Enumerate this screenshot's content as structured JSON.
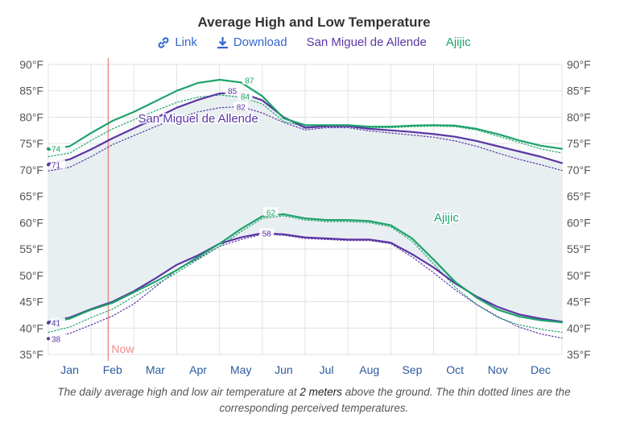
{
  "title": "Average High and Low Temperature",
  "controls": {
    "link_label": "Link",
    "download_label": "Download",
    "series1_label": "San Miguel de Allende",
    "series2_label": "Ajijic"
  },
  "caption": {
    "before": "The daily average high and low air temperature at ",
    "emph": "2 meters",
    "after": " above the ground. The thin dotted lines are the corresponding perceived temperatures."
  },
  "colors": {
    "san_miguel": "#5c35a5",
    "ajijic": "#1ea36b",
    "band": "#e9eef2",
    "now_line": "#f08a8a",
    "grid": "#e2e2e2"
  },
  "chart_data": {
    "type": "line",
    "title": "Average High and Low Temperature",
    "y_unit": "°F",
    "ylim": [
      35,
      90
    ],
    "y_ticks": [
      35,
      40,
      45,
      50,
      55,
      60,
      65,
      70,
      75,
      80,
      85,
      90
    ],
    "y_tick_labels": [
      "35°F",
      "40°F",
      "45°F",
      "50°F",
      "55°F",
      "60°F",
      "65°F",
      "70°F",
      "75°F",
      "80°F",
      "85°F",
      "90°F"
    ],
    "x_labels": [
      "Jan",
      "Feb",
      "Mar",
      "Apr",
      "May",
      "Jun",
      "Jul",
      "Aug",
      "Sep",
      "Oct",
      "Nov",
      "Dec"
    ],
    "x_unit": "month",
    "now_label": "Now",
    "now_x": 1.4,
    "grid": true,
    "series": [
      {
        "name": "San Miguel de Allende",
        "kind": "high",
        "style": "solid",
        "color": "#5c35a5",
        "x": [
          0,
          0.5,
          1,
          1.5,
          2,
          2.5,
          3,
          3.5,
          4,
          4.5,
          5,
          5.5,
          6,
          6.5,
          7,
          7.5,
          8,
          8.5,
          9,
          9.5,
          10,
          10.5,
          11,
          11.5,
          12
        ],
        "y": [
          71.2,
          72,
          73.9,
          76,
          77.9,
          79.8,
          81.8,
          83.3,
          84.5,
          84.6,
          83.2,
          80,
          78,
          78.3,
          78.3,
          77.8,
          77.5,
          77.2,
          76.8,
          76.3,
          75.5,
          74.5,
          73.5,
          72.5,
          71.3
        ],
        "labels": [
          {
            "x": 0,
            "y": 71,
            "text": "71"
          },
          {
            "x": 4.3,
            "y": 85,
            "text": "85"
          }
        ],
        "name_label_pos": [
          3.5,
          79
        ]
      },
      {
        "name": "San Miguel de Allende",
        "kind": "high perceived",
        "style": "dotted",
        "color": "#5c35a5",
        "x": [
          0,
          0.5,
          1,
          1.5,
          2,
          2.5,
          3,
          3.5,
          4,
          4.5,
          5,
          5.5,
          6,
          6.5,
          7,
          7.5,
          8,
          8.5,
          9,
          9.5,
          10,
          10.5,
          11,
          11.5,
          12
        ],
        "y": [
          69.8,
          70.5,
          72.5,
          74.8,
          76.5,
          78.2,
          79.8,
          81,
          81.8,
          82,
          80.8,
          79,
          77.6,
          78,
          78,
          77.4,
          77,
          76.6,
          76.2,
          75.5,
          74.5,
          73.2,
          72,
          71,
          69.9
        ],
        "labels": [
          {
            "x": 4.5,
            "y": 82,
            "text": "82"
          }
        ]
      },
      {
        "name": "San Miguel de Allende",
        "kind": "low",
        "style": "solid",
        "color": "#5c35a5",
        "x": [
          0,
          0.5,
          1,
          1.5,
          2,
          2.5,
          3,
          3.5,
          4,
          4.5,
          5,
          5.5,
          6,
          6.5,
          7,
          7.5,
          8,
          8.5,
          9,
          9.5,
          10,
          10.5,
          11,
          11.5,
          12
        ],
        "y": [
          41.2,
          42,
          43.6,
          45,
          47,
          49.4,
          52,
          53.8,
          56,
          57.2,
          58,
          57.8,
          57.2,
          57,
          56.8,
          56.8,
          56.2,
          54,
          51.5,
          48.5,
          46,
          44,
          42.6,
          41.8,
          41.2
        ],
        "labels": [
          {
            "x": 0,
            "y": 41,
            "text": "41"
          },
          {
            "x": 5.1,
            "y": 58,
            "text": "58"
          }
        ]
      },
      {
        "name": "San Miguel de Allende",
        "kind": "low perceived",
        "style": "dotted",
        "color": "#5c35a5",
        "x": [
          0,
          0.5,
          1,
          1.5,
          2,
          2.5,
          3,
          3.5,
          4,
          4.5,
          5,
          5.5,
          6,
          6.5,
          7,
          7.5,
          8,
          8.5,
          9,
          9.5,
          10,
          10.5,
          11,
          11.5,
          12
        ],
        "y": [
          38.1,
          39,
          40.6,
          42.3,
          44.6,
          47.8,
          51,
          53.2,
          55.5,
          56.8,
          57.8,
          57.6,
          57,
          56.8,
          56.6,
          56.6,
          56,
          53.5,
          50.5,
          47.3,
          44.5,
          42.2,
          40.2,
          38.9,
          38.1
        ],
        "labels": [
          {
            "x": 0,
            "y": 38,
            "text": "38"
          }
        ]
      },
      {
        "name": "Ajijic",
        "kind": "high",
        "style": "solid",
        "color": "#1ea36b",
        "x": [
          0,
          0.5,
          1,
          1.5,
          2,
          2.5,
          3,
          3.5,
          4,
          4.5,
          5,
          5.5,
          6,
          6.5,
          7,
          7.5,
          8,
          8.5,
          9,
          9.5,
          10,
          10.5,
          11,
          11.5,
          12
        ],
        "y": [
          73.8,
          74.5,
          77,
          79.3,
          81,
          83,
          85,
          86.5,
          87.1,
          86.6,
          84,
          79.8,
          78.5,
          78.5,
          78.5,
          78.2,
          78.2,
          78.4,
          78.5,
          78.4,
          77.8,
          76.8,
          75.6,
          74.6,
          74
        ],
        "labels": [
          {
            "x": 0,
            "y": 74,
            "text": "74"
          },
          {
            "x": 4.7,
            "y": 87,
            "text": "87"
          },
          {
            "x": 4.6,
            "y": 84,
            "text": "84"
          }
        ]
      },
      {
        "name": "Ajijic",
        "kind": "high perceived",
        "style": "dotted",
        "color": "#1ea36b",
        "x": [
          0,
          0.5,
          1,
          1.5,
          2,
          2.5,
          3,
          3.5,
          4,
          4.5,
          5,
          5.5,
          6,
          6.5,
          7,
          7.5,
          8,
          8.5,
          9,
          9.5,
          10,
          10.5,
          11,
          11.5,
          12
        ],
        "y": [
          72.5,
          73.2,
          75.6,
          77.8,
          79.5,
          81.2,
          82.8,
          83.8,
          84.2,
          83.8,
          82.5,
          79.2,
          78.2,
          78.3,
          78.3,
          78,
          78,
          78.2,
          78.3,
          78.2,
          77.6,
          76.4,
          75.2,
          74,
          73.2
        ],
        "labels": []
      },
      {
        "name": "Ajijic",
        "kind": "low",
        "style": "solid",
        "color": "#1ea36b",
        "x": [
          0,
          0.5,
          1,
          1.5,
          2,
          2.5,
          3,
          3.5,
          4,
          4.5,
          5,
          5.5,
          6,
          6.5,
          7,
          7.5,
          8,
          8.5,
          9,
          9.5,
          10,
          10.5,
          11,
          11.5,
          12
        ],
        "y": [
          41,
          41.8,
          43.5,
          44.8,
          46.8,
          48.8,
          51,
          53.5,
          56,
          58.8,
          61.2,
          61.6,
          60.8,
          60.5,
          60.5,
          60.3,
          59.5,
          57,
          53,
          48.8,
          45.8,
          43.5,
          42.2,
          41.5,
          41.1
        ],
        "labels": [
          {
            "x": 5.2,
            "y": 62,
            "text": "62"
          }
        ],
        "name_label_pos": [
          9.3,
          60.2
        ]
      },
      {
        "name": "Ajijic",
        "kind": "low perceived",
        "style": "dotted",
        "color": "#1ea36b",
        "x": [
          0,
          0.5,
          1,
          1.5,
          2,
          2.5,
          3,
          3.5,
          4,
          4.5,
          5,
          5.5,
          6,
          6.5,
          7,
          7.5,
          8,
          8.5,
          9,
          9.5,
          10,
          10.5,
          11,
          11.5,
          12
        ],
        "y": [
          39.2,
          40.2,
          42,
          43.6,
          46,
          48.2,
          50.5,
          53,
          55.5,
          58.3,
          60.8,
          61.3,
          60.5,
          60.2,
          60.2,
          60,
          59.2,
          56.5,
          52.2,
          47.8,
          44.5,
          42,
          40.6,
          39.8,
          39.2
        ],
        "labels": []
      }
    ]
  }
}
